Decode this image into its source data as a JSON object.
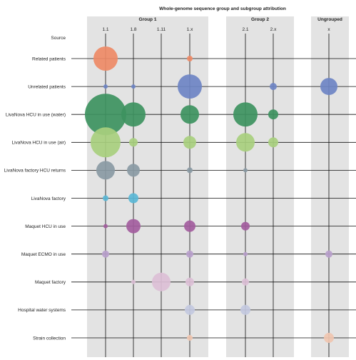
{
  "chart_data": {
    "type": "bubble-matrix",
    "title": "Whole-genome sequence group and subgroup attribution",
    "corner_label": "Source",
    "groups": [
      {
        "label": "Group 1",
        "columns": [
          "1.1",
          "1.8",
          "1.11",
          "1.x"
        ]
      },
      {
        "label": "Group 2",
        "columns": [
          "2.1",
          "2.x"
        ]
      },
      {
        "label": "Ungrouped",
        "columns": [
          "x"
        ]
      }
    ],
    "columns": [
      "1.1",
      "1.8",
      "1.11",
      "1.x",
      "2.1",
      "2.x",
      "x"
    ],
    "rows": [
      {
        "label": "Related patients",
        "color": "#ee8a66",
        "values": [
          17,
          0,
          0,
          4,
          0,
          0,
          0
        ]
      },
      {
        "label": "Unrelated patients",
        "color": "#6e84c4",
        "values": [
          3,
          3,
          0,
          17,
          0,
          5,
          12
        ]
      },
      {
        "label": "LivaNova HCU in use (water)",
        "color": "#3d9360",
        "values": [
          29,
          17,
          0,
          13,
          17,
          7,
          0
        ]
      },
      {
        "label": "LivaNova HCU in use (air)",
        "color": "#a8cf7e",
        "values": [
          21,
          6,
          0,
          9,
          13,
          7,
          0
        ]
      },
      {
        "label": "LivaNova factory HCU returns",
        "color": "#8a9aa4",
        "values": [
          13,
          9,
          0,
          4,
          3,
          0,
          0
        ]
      },
      {
        "label": "LivaNova factory",
        "color": "#5ab7d6",
        "values": [
          4,
          7,
          0,
          0,
          0,
          0,
          0
        ]
      },
      {
        "label": "Maquet HCU in use",
        "color": "#a35d9e",
        "values": [
          3,
          10,
          0,
          8,
          6,
          0,
          0
        ]
      },
      {
        "label": "Maquet ECMO in use",
        "color": "#b8a0cc",
        "values": [
          5,
          0,
          0,
          5,
          3,
          0,
          5
        ]
      },
      {
        "label": "Maquet factory",
        "color": "#dcbfd6",
        "values": [
          0,
          3,
          13,
          6,
          5,
          0,
          0
        ]
      },
      {
        "label": "Hospital water systems",
        "color": "#c3c9e0",
        "values": [
          0,
          0,
          0,
          7,
          7,
          0,
          0
        ]
      },
      {
        "label": "Strain collection",
        "color": "#f0c6b0",
        "values": [
          0,
          0,
          0,
          4,
          0,
          0,
          7
        ]
      }
    ],
    "background_bands": "#e3e3e3",
    "grid": true,
    "legend": "none"
  }
}
